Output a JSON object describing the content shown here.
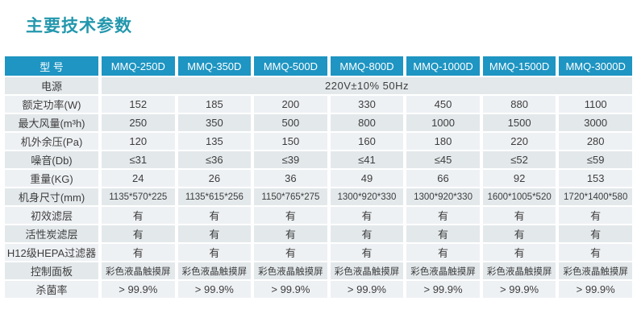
{
  "title": "主要技术参数",
  "colors": {
    "title_text": "#2397ad",
    "header_bg": "#1e95c2",
    "header_text": "#ffffff",
    "row_dark_bg": "#e3e8eb",
    "row_light_bg": "#eef1f4",
    "cell_text": "#3d3d3d"
  },
  "table": {
    "header": [
      "型 号",
      "MMQ-250D",
      "MMQ-350D",
      "MMQ-500D",
      "MMQ-800D",
      "MMQ-1000D",
      "MMQ-1500D",
      "MMQ-3000D"
    ],
    "power_row": {
      "label": "电源",
      "value": "220V±10%   50Hz"
    },
    "rows": [
      {
        "label": "额定功率(W)",
        "values": [
          "152",
          "185",
          "200",
          "330",
          "450",
          "880",
          "1100"
        ]
      },
      {
        "label": "最大风量(m³h)",
        "values": [
          "250",
          "350",
          "500",
          "800",
          "1000",
          "1500",
          "3000"
        ]
      },
      {
        "label": "机外余压(Pa)",
        "values": [
          "120",
          "135",
          "150",
          "160",
          "180",
          "220",
          "280"
        ]
      },
      {
        "label": "噪音(Db)",
        "values": [
          "≤31",
          "≤36",
          "≤39",
          "≤41",
          "≤45",
          "≤52",
          "≤59"
        ]
      },
      {
        "label": "重量(KG)",
        "values": [
          "24",
          "26",
          "36",
          "49",
          "66",
          "92",
          "153"
        ]
      },
      {
        "label": "机身尺寸(mm)",
        "values": [
          "1135*570*225",
          "1135*615*256",
          "1150*765*275",
          "1300*920*330",
          "1300*920*330",
          "1600*1005*520",
          "1720*1400*580"
        ]
      },
      {
        "label": "初效滤层",
        "values": [
          "有",
          "有",
          "有",
          "有",
          "有",
          "有",
          "有"
        ]
      },
      {
        "label": "活性炭滤层",
        "values": [
          "有",
          "有",
          "有",
          "有",
          "有",
          "有",
          "有"
        ]
      },
      {
        "label": "H12级HEPA过滤器",
        "values": [
          "有",
          "有",
          "有",
          "有",
          "有",
          "有",
          "有"
        ]
      },
      {
        "label": "控制面板",
        "values": [
          "彩色液晶触摸屏",
          "彩色液晶触摸屏",
          "彩色液晶触摸屏",
          "彩色液晶触摸屏",
          "彩色液晶触摸屏",
          "彩色液晶触摸屏",
          "彩色液晶触摸屏"
        ]
      },
      {
        "label": "杀菌率",
        "values": [
          "> 99.9%",
          "> 99.9%",
          "> 99.9%",
          "> 99.9%",
          "> 99.9%",
          "> 99.9%",
          "> 99.9%"
        ]
      }
    ]
  }
}
